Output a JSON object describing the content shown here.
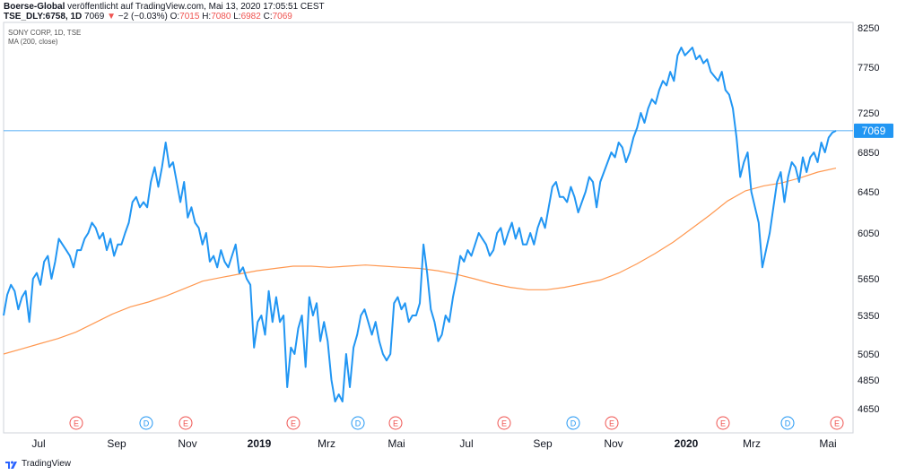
{
  "header": {
    "publisher": "Boerse-Global",
    "published_text": "veröffentlicht auf TradingView.com, Mai 13, 2020 17:05:51 CEST",
    "symbol": "TSE_DLY:6758, 1D",
    "last": "7069",
    "change_arrow": "▼",
    "change": "−2 (−0.03%)",
    "open_label": "O:",
    "open": "7015",
    "high_label": "H:",
    "high": "7080",
    "low_label": "L:",
    "low": "6982",
    "close_label": "C:",
    "close": "7069"
  },
  "legend": {
    "instrument": "SONY CORP, 1D, TSE",
    "indicator": "MA (200, close)"
  },
  "last_price_label": "7069",
  "footer": {
    "brand": "TradingView"
  },
  "colors": {
    "price": "#2196f3",
    "ma": "#ff9850",
    "earnings": "#ef5350",
    "dividend": "#2196f3",
    "last_line": "#2196f3"
  },
  "chart_data": {
    "type": "line",
    "y_ticks": [
      4650,
      4850,
      5050,
      5350,
      5650,
      6050,
      6450,
      6850,
      7250,
      7750,
      8250
    ],
    "x_ticks": [
      "Jul",
      "Sep",
      "Nov",
      "2019",
      "Mrz",
      "Mai",
      "Jul",
      "Sep",
      "Nov",
      "2020",
      "Mrz",
      "Mai"
    ],
    "events": [
      "E",
      "D",
      "E",
      "E",
      "D",
      "E",
      "E",
      "D",
      "E",
      "E",
      "D",
      "E"
    ],
    "series": [
      {
        "color": "#2196f3",
        "values": [
          5350,
          5520,
          5600,
          5550,
          5400,
          5500,
          5550,
          5300,
          5650,
          5700,
          5600,
          5800,
          5850,
          5650,
          5800,
          6000,
          5950,
          5900,
          5850,
          5750,
          5900,
          5900,
          6000,
          6050,
          6150,
          6100,
          6000,
          6050,
          5900,
          6000,
          5850,
          5950,
          5950,
          6050,
          6150,
          6350,
          6400,
          6300,
          6350,
          6300,
          6550,
          6700,
          6500,
          6700,
          6950,
          6700,
          6750,
          6550,
          6350,
          6550,
          6200,
          6300,
          6150,
          6100,
          5950,
          6050,
          5800,
          5850,
          5750,
          5900,
          5800,
          5750,
          5850,
          5950,
          5700,
          5750,
          5650,
          5600,
          5100,
          5300,
          5350,
          5200,
          5550,
          5300,
          5500,
          5300,
          5350,
          4800,
          5100,
          5050,
          5250,
          5350,
          4950,
          5500,
          5350,
          5450,
          5150,
          5300,
          5150,
          4850,
          4700,
          4750,
          4700,
          5050,
          4800,
          5100,
          5200,
          5350,
          5400,
          5300,
          5200,
          5300,
          5150,
          5050,
          5000,
          5050,
          5450,
          5500,
          5400,
          5450,
          5300,
          5350,
          5350,
          5450,
          5950,
          5700,
          5400,
          5300,
          5150,
          5200,
          5350,
          5300,
          5500,
          5650,
          5850,
          5800,
          5900,
          5850,
          5950,
          6050,
          6000,
          5950,
          5850,
          5900,
          6050,
          6100,
          5950,
          6050,
          6150,
          6000,
          6100,
          5950,
          5950,
          6050,
          5950,
          6100,
          6200,
          6100,
          6300,
          6500,
          6550,
          6400,
          6400,
          6350,
          6500,
          6400,
          6250,
          6350,
          6450,
          6600,
          6550,
          6300,
          6550,
          6650,
          6750,
          6850,
          6800,
          6950,
          6900,
          6750,
          6850,
          7000,
          7100,
          7250,
          7150,
          7300,
          7400,
          7350,
          7500,
          7600,
          7550,
          7700,
          7600,
          7900,
          8000,
          7900,
          7950,
          8000,
          7850,
          7900,
          7800,
          7850,
          7700,
          7650,
          7600,
          7700,
          7500,
          7450,
          7300,
          7000,
          6600,
          6750,
          6850,
          6450,
          6300,
          6150,
          5750,
          5900,
          6050,
          6300,
          6550,
          6650,
          6350,
          6600,
          6750,
          6700,
          6550,
          6800,
          6650,
          6800,
          6850,
          6750,
          6950,
          6850,
          7000,
          7050,
          7069
        ]
      },
      {
        "color": "#ff9850",
        "values": [
          5050,
          5090,
          5130,
          5170,
          5220,
          5290,
          5360,
          5420,
          5460,
          5510,
          5570,
          5630,
          5660,
          5690,
          5720,
          5740,
          5760,
          5760,
          5750,
          5760,
          5770,
          5760,
          5750,
          5740,
          5720,
          5690,
          5650,
          5610,
          5580,
          5560,
          5560,
          5580,
          5610,
          5640,
          5700,
          5780,
          5870,
          5970,
          6090,
          6220,
          6360,
          6460,
          6510,
          6540,
          6590,
          6650,
          6690
        ]
      }
    ]
  }
}
